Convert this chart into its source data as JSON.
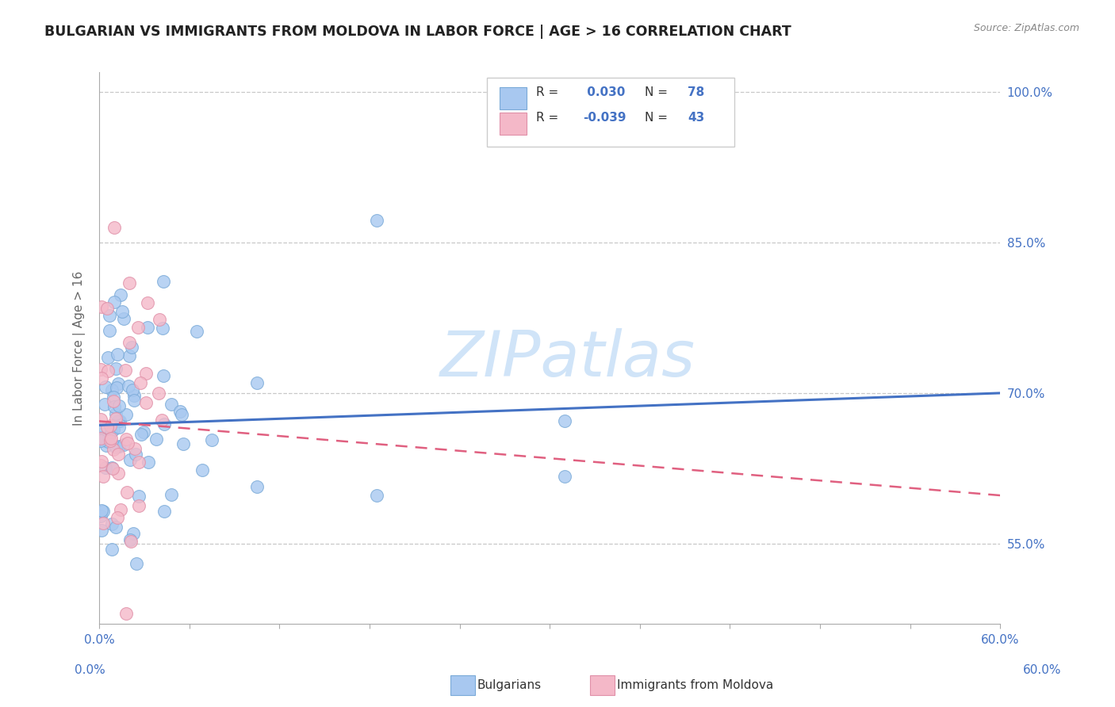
{
  "title": "BULGARIAN VS IMMIGRANTS FROM MOLDOVA IN LABOR FORCE | AGE > 16 CORRELATION CHART",
  "source": "Source: ZipAtlas.com",
  "ylabel": "In Labor Force | Age > 16",
  "xlim": [
    0.0,
    0.6
  ],
  "ylim": [
    0.47,
    1.02
  ],
  "ytick_labels": [
    "100.0%",
    "85.0%",
    "70.0%",
    "55.0%"
  ],
  "ytick_positions": [
    1.0,
    0.85,
    0.7,
    0.55
  ],
  "color_blue": "#a8c8f0",
  "color_pink": "#f4b8c8",
  "color_blue_edge": "#7aaad8",
  "color_pink_edge": "#e090a8",
  "color_blue_line": "#4472c4",
  "color_pink_line": "#e06080",
  "bg_color": "#ffffff",
  "grid_color": "#c8c8c8",
  "title_color": "#222222",
  "source_color": "#888888",
  "axis_color": "#4472c4",
  "ylabel_color": "#666666",
  "watermark_color": "#d0e4f8",
  "r1_label": "R = ",
  "r1_val": " 0.030",
  "n1_label": "N = ",
  "n1_val": "78",
  "r2_label": "R = ",
  "r2_val": "-0.039",
  "n2_label": "N = ",
  "n2_val": "43"
}
